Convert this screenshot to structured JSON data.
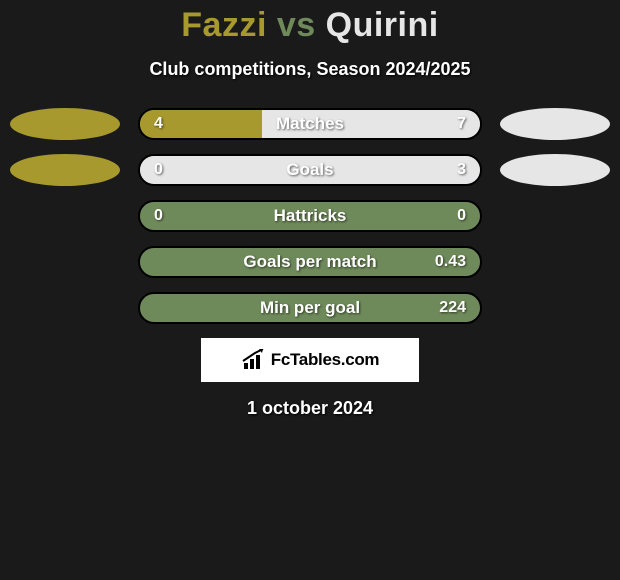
{
  "header": {
    "player1": "Fazzi",
    "vs": "vs",
    "player2": "Quirini",
    "subtitle": "Club competitions, Season 2024/2025"
  },
  "colors": {
    "player1_accent": "#a8992f",
    "player2_accent": "#e6e6e6",
    "bar_bg": "#6f8a5a",
    "bar_border": "#000000",
    "title_p1": "#a8992f",
    "title_vs": "#6f8a5a",
    "title_p2": "#e6e6e6",
    "background": "#1a1a1a"
  },
  "stats": [
    {
      "label": "Matches",
      "left_value": "4",
      "right_value": "7",
      "left_pct": 36,
      "right_pct": 64,
      "show_ovals": true
    },
    {
      "label": "Goals",
      "left_value": "0",
      "right_value": "3",
      "left_pct": 0,
      "right_pct": 100,
      "show_ovals": true
    },
    {
      "label": "Hattricks",
      "left_value": "0",
      "right_value": "0",
      "left_pct": 0,
      "right_pct": 0,
      "show_ovals": false
    },
    {
      "label": "Goals per match",
      "left_value": "",
      "right_value": "0.43",
      "left_pct": 0,
      "right_pct": 0,
      "show_ovals": false
    },
    {
      "label": "Min per goal",
      "left_value": "",
      "right_value": "224",
      "left_pct": 0,
      "right_pct": 0,
      "show_ovals": false
    }
  ],
  "brand": "FcTables.com",
  "date": "1 october 2024"
}
